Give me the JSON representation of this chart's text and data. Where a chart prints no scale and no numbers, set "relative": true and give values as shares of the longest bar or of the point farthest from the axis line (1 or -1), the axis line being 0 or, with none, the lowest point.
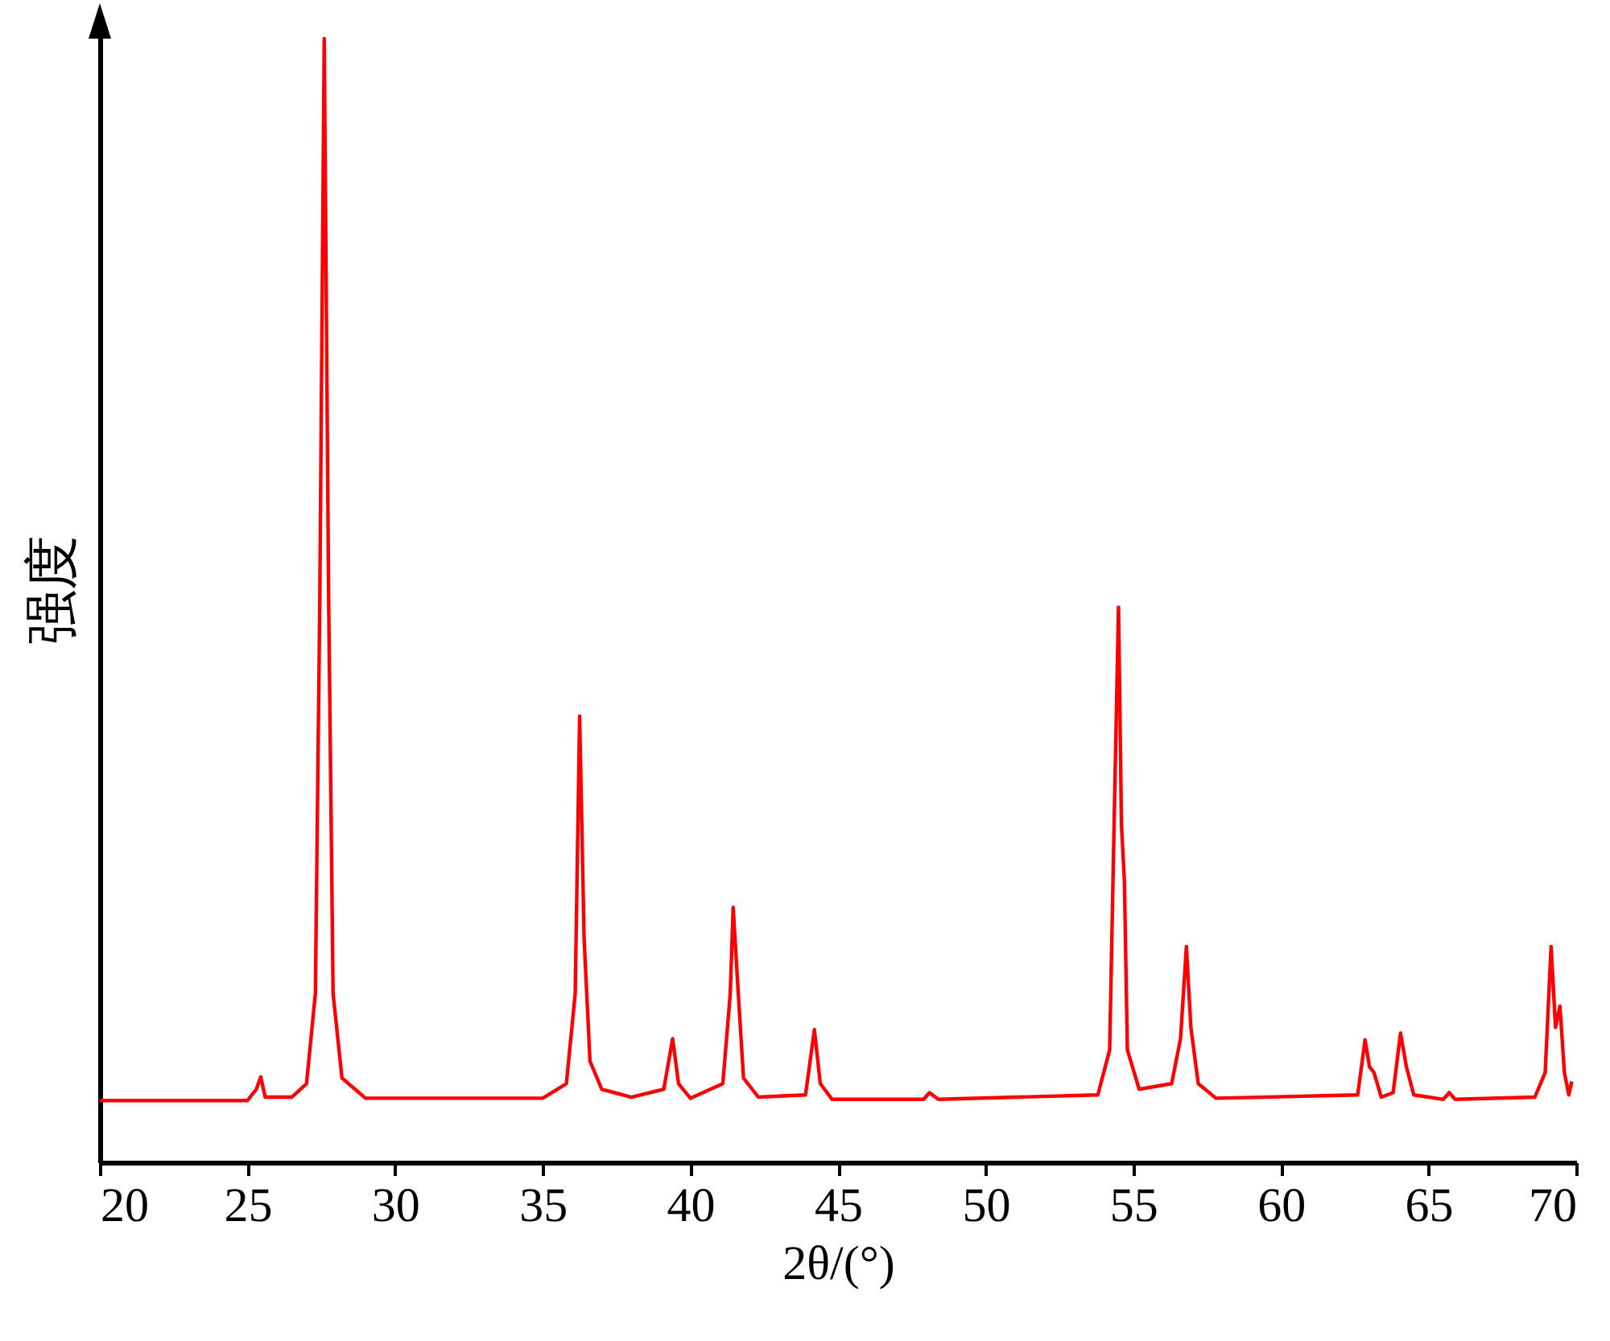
{
  "chart_data": {
    "type": "line",
    "xlabel": "2θ/(°)",
    "ylabel": "强度",
    "relative": true,
    "color": "#ff0000",
    "xlim": [
      20,
      70
    ],
    "xticks": [
      20,
      25,
      30,
      35,
      40,
      45,
      50,
      55,
      60,
      65,
      70
    ],
    "x": [
      20,
      25.0,
      25.3,
      25.45,
      25.6,
      26.5,
      27.0,
      27.3,
      27.45,
      27.6,
      27.75,
      27.9,
      28.2,
      29,
      35,
      35.8,
      36.1,
      36.25,
      36.4,
      36.6,
      37,
      38,
      39.1,
      39.4,
      39.6,
      40,
      41.1,
      41.35,
      41.45,
      41.6,
      41.8,
      42.3,
      43.9,
      44.2,
      44.4,
      44.8,
      47.9,
      48.1,
      48.4,
      53.8,
      54.2,
      54.35,
      54.5,
      54.6,
      54.7,
      54.8,
      55.2,
      56.3,
      56.6,
      56.8,
      56.95,
      57.2,
      57.8,
      62.6,
      62.85,
      63.0,
      63.15,
      63.4,
      63.8,
      64.05,
      64.25,
      64.5,
      65.5,
      65.7,
      65.9,
      68.6,
      68.95,
      69.15,
      69.3,
      69.45,
      69.6,
      69.75,
      69.85
    ],
    "values": [
      0.055,
      0.055,
      0.065,
      0.076,
      0.058,
      0.058,
      0.07,
      0.15,
      0.5,
      1.0,
      0.5,
      0.15,
      0.075,
      0.057,
      0.057,
      0.07,
      0.15,
      0.397,
      0.2,
      0.09,
      0.065,
      0.058,
      0.065,
      0.11,
      0.07,
      0.057,
      0.07,
      0.15,
      0.227,
      0.16,
      0.075,
      0.058,
      0.06,
      0.118,
      0.07,
      0.056,
      0.056,
      0.062,
      0.056,
      0.06,
      0.1,
      0.3,
      0.494,
      0.3,
      0.25,
      0.1,
      0.065,
      0.07,
      0.11,
      0.192,
      0.12,
      0.07,
      0.057,
      0.06,
      0.109,
      0.085,
      0.08,
      0.058,
      0.062,
      0.115,
      0.085,
      0.06,
      0.056,
      0.062,
      0.056,
      0.058,
      0.08,
      0.192,
      0.12,
      0.139,
      0.08,
      0.06,
      0.072
    ]
  }
}
